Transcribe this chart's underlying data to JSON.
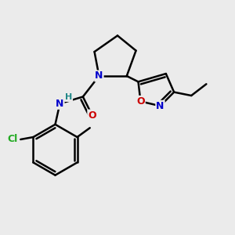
{
  "bg_color": "#ebebeb",
  "bond_color": "#000000",
  "bond_width": 1.8,
  "atom_colors": {
    "N": "#0000cc",
    "O": "#cc0000",
    "Cl": "#22aa22",
    "C": "#000000",
    "H": "#228888"
  },
  "font_size": 9,
  "fig_width": 3.0,
  "fig_height": 3.0,
  "dpi": 100
}
